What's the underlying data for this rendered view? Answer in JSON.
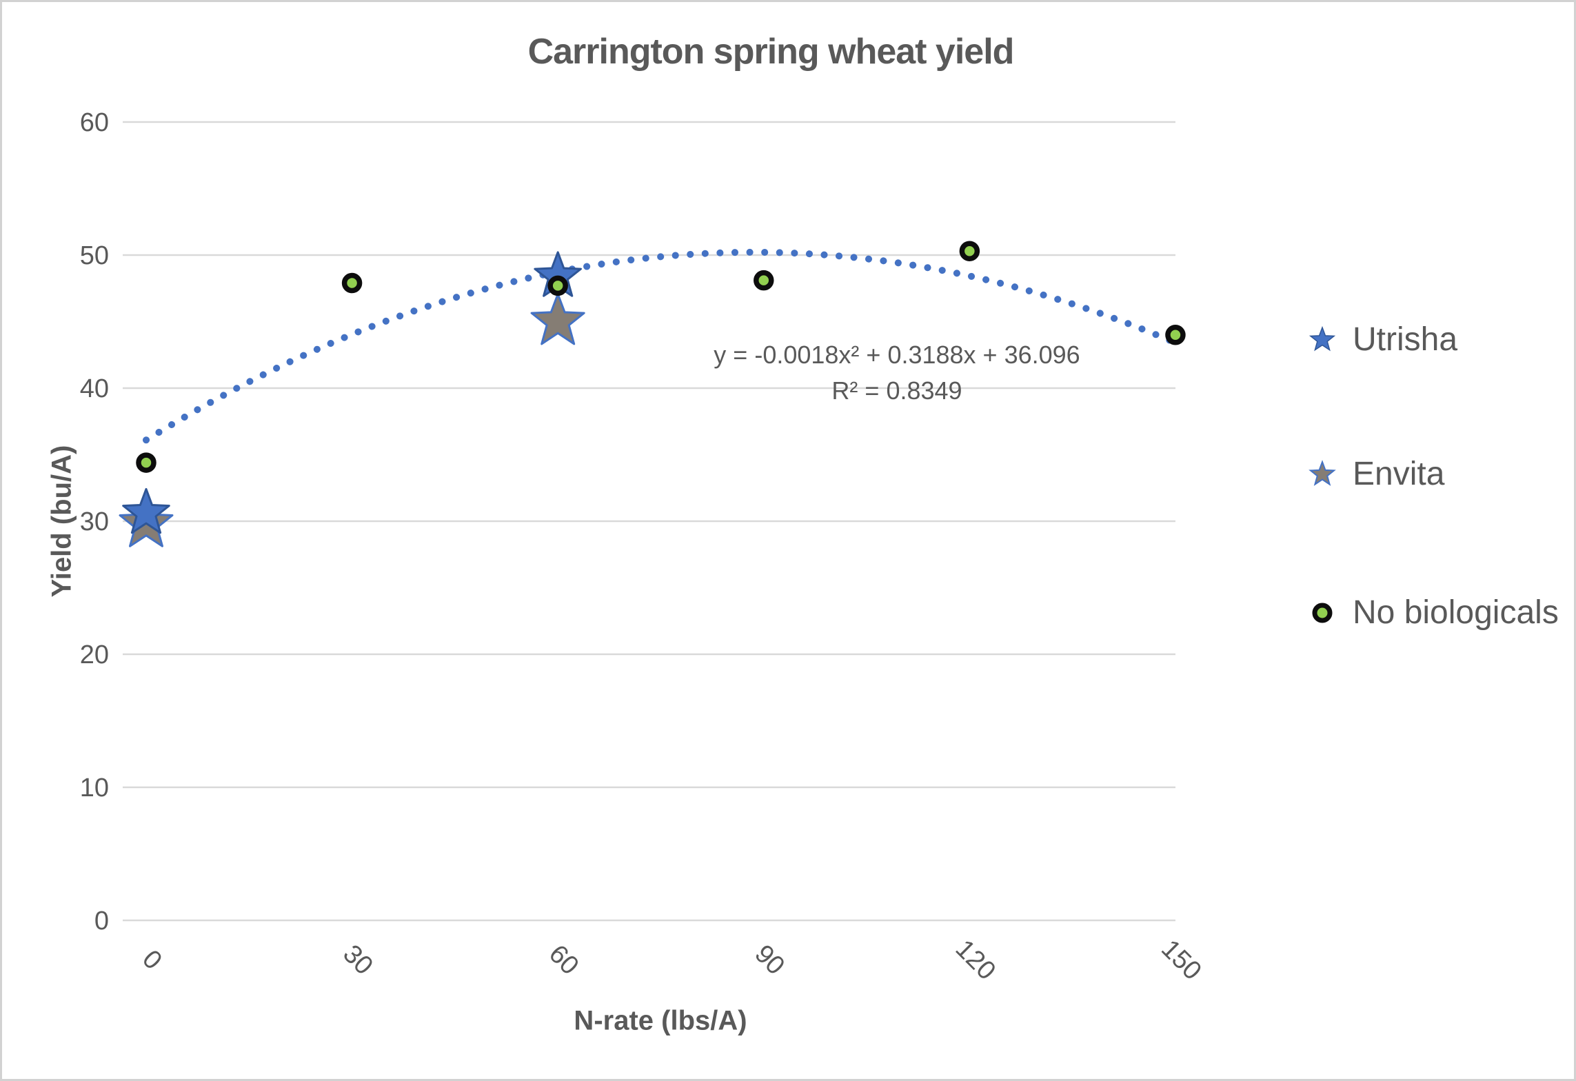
{
  "chart_data": {
    "type": "scatter",
    "title": "Carrington spring wheat yield",
    "xlabel": "N-rate (lbs/A)",
    "ylabel": "Yield (bu/A)",
    "xlim": [
      0,
      150
    ],
    "ylim": [
      0,
      60
    ],
    "xticks": [
      0,
      30,
      60,
      90,
      120,
      150
    ],
    "yticks": [
      0,
      10,
      20,
      30,
      40,
      50,
      60
    ],
    "grid": true,
    "legend_position": "right",
    "colors": {
      "text": "#595959",
      "gridline": "#D9D9D9",
      "blue": "#4472C4",
      "blue_edge": "#2E5596",
      "gray": "#857D74",
      "green": "#92D050",
      "green_edge": "#0D0D0D"
    },
    "series": [
      {
        "name": "Utrisha",
        "marker": "star",
        "color": "#4472C4",
        "edge": "#2E5596",
        "points": [
          {
            "x": 0,
            "y": 30.6
          },
          {
            "x": 60,
            "y": 48.4
          }
        ]
      },
      {
        "name": "Envita",
        "marker": "star",
        "color": "#857D74",
        "edge": "#4472C4",
        "points": [
          {
            "x": 0,
            "y": 29.8
          },
          {
            "x": 60,
            "y": 45.0
          }
        ]
      },
      {
        "name": "No biologicals",
        "marker": "circle",
        "color": "#92D050",
        "edge": "#0D0D0D",
        "points": [
          {
            "x": 0,
            "y": 34.4
          },
          {
            "x": 30,
            "y": 47.9
          },
          {
            "x": 60,
            "y": 47.7
          },
          {
            "x": 90,
            "y": 48.1
          },
          {
            "x": 120,
            "y": 50.3
          },
          {
            "x": 150,
            "y": 44.0
          }
        ]
      }
    ],
    "trendline": {
      "applies_to": "No biologicals",
      "equation": "y = -0.0018x² + 0.3188x + 36.096",
      "r2_label": "R² = 0.8349",
      "coefficients": [
        -0.0018,
        0.3188,
        36.096
      ],
      "style": "dotted",
      "color": "#4472C4"
    }
  }
}
